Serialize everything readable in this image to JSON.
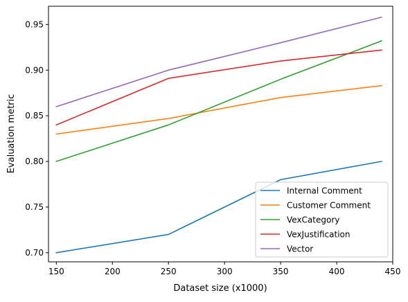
{
  "chart_data": {
    "type": "line",
    "title": "",
    "xlabel": "Dataset size (x1000)",
    "ylabel": "Evaluation metric",
    "xlim": [
      143,
      450
    ],
    "ylim": [
      0.69,
      0.97
    ],
    "xticks": [
      150,
      200,
      250,
      300,
      350,
      400,
      450
    ],
    "yticks": [
      0.7,
      0.75,
      0.8,
      0.85,
      0.9,
      0.95
    ],
    "xtick_labels": [
      "150",
      "200",
      "250",
      "300",
      "350",
      "400",
      "450"
    ],
    "ytick_labels": [
      "0.70",
      "0.75",
      "0.80",
      "0.85",
      "0.90",
      "0.95"
    ],
    "grid": false,
    "legend_position": "lower-right",
    "x": [
      150,
      250,
      350,
      440
    ],
    "series": [
      {
        "name": "Internal Comment",
        "values": [
          0.7,
          0.72,
          0.78,
          0.8
        ],
        "color": "#1f77b4"
      },
      {
        "name": "Customer Comment",
        "values": [
          0.83,
          0.847,
          0.87,
          0.883
        ],
        "color": "#ff7f0e"
      },
      {
        "name": "VexCategory",
        "values": [
          0.8,
          0.84,
          0.89,
          0.932
        ],
        "color": "#2ca02c"
      },
      {
        "name": "VexJustification",
        "values": [
          0.84,
          0.891,
          0.91,
          0.922
        ],
        "color": "#d62728"
      },
      {
        "name": "Vector",
        "values": [
          0.86,
          0.9,
          0.93,
          0.958
        ],
        "color": "#9467bd"
      }
    ]
  }
}
